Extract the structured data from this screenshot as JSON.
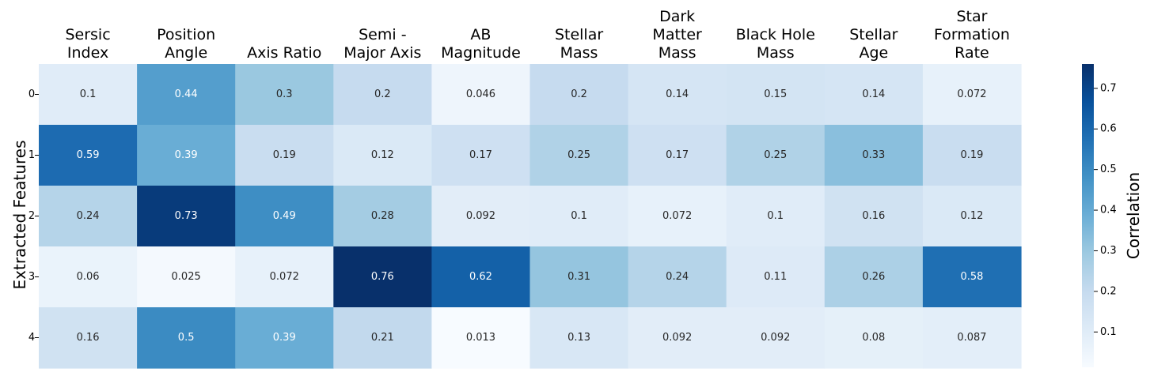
{
  "chart_data": {
    "type": "heatmap",
    "columns": [
      [
        "Sersic",
        "Index"
      ],
      [
        "Position",
        "Angle"
      ],
      [
        "Axis Ratio"
      ],
      [
        "Semi -",
        "Major Axis"
      ],
      [
        "AB",
        "Magnitude"
      ],
      [
        "Stellar",
        "Mass"
      ],
      [
        "Dark",
        "Matter",
        "Mass"
      ],
      [
        "Black Hole",
        "Mass"
      ],
      [
        "Stellar",
        "Age"
      ],
      [
        "Star",
        "Formation",
        "Rate"
      ]
    ],
    "rows": [
      "0",
      "1",
      "2",
      "3",
      "4"
    ],
    "values": [
      [
        0.1,
        0.44,
        0.3,
        0.2,
        0.046,
        0.2,
        0.14,
        0.15,
        0.14,
        0.072
      ],
      [
        0.59,
        0.39,
        0.19,
        0.12,
        0.17,
        0.25,
        0.17,
        0.25,
        0.33,
        0.19
      ],
      [
        0.24,
        0.73,
        0.49,
        0.28,
        0.092,
        0.1,
        0.072,
        0.1,
        0.16,
        0.12
      ],
      [
        0.06,
        0.025,
        0.072,
        0.76,
        0.62,
        0.31,
        0.24,
        0.11,
        0.26,
        0.58
      ],
      [
        0.16,
        0.5,
        0.39,
        0.21,
        0.013,
        0.13,
        0.092,
        0.092,
        0.08,
        0.087
      ]
    ],
    "ylabel": "Extracted Features",
    "colorbar": {
      "label": "Correlation",
      "ticks": [
        "0.1",
        "0.2",
        "0.3",
        "0.4",
        "0.5",
        "0.6",
        "0.7"
      ],
      "range": [
        0.013,
        0.76
      ],
      "colormap": "Blues"
    }
  }
}
